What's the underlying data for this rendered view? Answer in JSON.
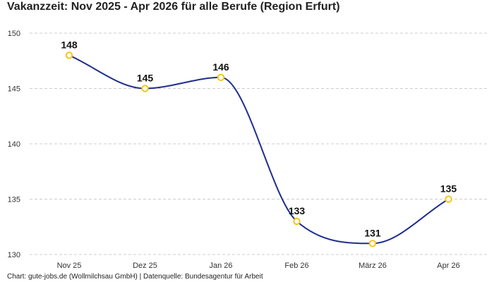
{
  "chart_data": {
    "type": "line",
    "title": "Vakanzzeit: Nov 2025 - Apr 2026 für alle Berufe (Region Erfurt)",
    "xlabel": "",
    "ylabel": "",
    "categories": [
      "Nov 25",
      "Dez 25",
      "Jan 26",
      "Feb 26",
      "März 26",
      "Apr 26"
    ],
    "series": [
      {
        "values": [
          148,
          145,
          146,
          133,
          131,
          135
        ],
        "data_labels": [
          "148",
          "145",
          "146",
          "133",
          "131",
          "135"
        ]
      }
    ],
    "ylim": [
      130,
      150
    ],
    "yticks": [
      130,
      135,
      140,
      145,
      150
    ],
    "ytick_labels": [
      "130",
      "135",
      "140",
      "145",
      "150"
    ],
    "grid": "horizontal-dashed",
    "legend": "none",
    "line_color": "#1f2e8c",
    "marker_color": "#f5c518",
    "grid_color": "#cccccc",
    "smooth": true
  },
  "footer": {
    "note": "Chart: gute-jobs.de (Wollmilchsau GmbH) | Datenquelle: Bundesagentur für Arbeit"
  }
}
